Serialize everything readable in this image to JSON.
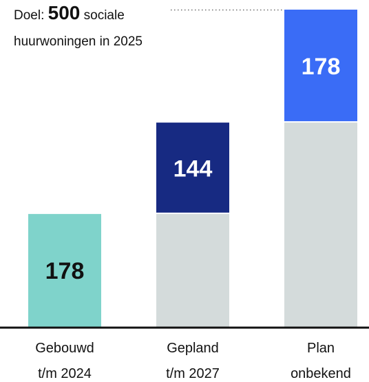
{
  "annotation": {
    "goal_prefix": "Doel:",
    "goal_value": "500",
    "goal_suffix": "sociale",
    "goal_line2": "huurwoningen in 2025"
  },
  "colors": {
    "base": "#d4dbdb",
    "built": "#7fd3cb",
    "planned": "#172a82",
    "unknown": "#3a6cf6",
    "axis": "#111111",
    "dots": "#555555"
  },
  "chart_data": {
    "type": "bar",
    "stacked": true,
    "target": 500,
    "ylim": [
      0,
      500
    ],
    "categories": [
      [
        "Gebouwd",
        "t/m 2024"
      ],
      [
        "Gepland",
        "t/m 2027"
      ],
      [
        "Plan",
        "onbekend"
      ]
    ],
    "bars": [
      {
        "base": 0,
        "value": 178,
        "label": "178",
        "color_key": "built"
      },
      {
        "base": 178,
        "value": 144,
        "label": "144",
        "color_key": "planned"
      },
      {
        "base": 322,
        "value": 178,
        "label": "178",
        "color_key": "unknown"
      }
    ]
  }
}
